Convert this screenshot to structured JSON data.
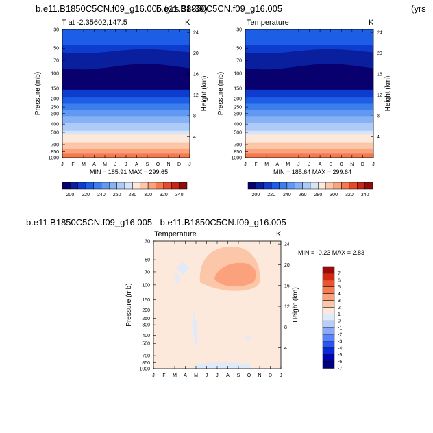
{
  "page": {
    "title_left": "b.e11.B1850C5CN.f09_g16.005 (yrs 38-39)",
    "title_right": "b.e11.B1850C5CN.f09_g16.005",
    "title_right_suffix": "(yrs",
    "diff_title": "b.e11.B1850C5CN.f09_g16.005 - b.e11.B1850C5CN.f09_g16.005"
  },
  "colors": {
    "temperature_palette": [
      "#08006e",
      "#0a1f9e",
      "#0d3ccf",
      "#1c5ee6",
      "#3d7eef",
      "#6098f2",
      "#86b1f5",
      "#aecbf7",
      "#d6e4f9",
      "#fde8dc",
      "#fcc7a9",
      "#f9a27c",
      "#f4794f",
      "#e44b2a",
      "#c72515",
      "#8e0c0c"
    ],
    "difference_palette": [
      "#000078",
      "#0000b4",
      "#0a28dc",
      "#2b54f0",
      "#5a84f7",
      "#8aaaf8",
      "#b7cdfa",
      "#dfeafb",
      "#fde8dc",
      "#fcc7a9",
      "#fba27c",
      "#f57c52",
      "#eb542c",
      "#d12a12",
      "#9e0808"
    ]
  },
  "chart_data": [
    {
      "type": "heatmap",
      "title": "T at -2.35602,147.5",
      "units_label": "K",
      "ylabel": "Pressure (mb)",
      "y2label": "Height (km)",
      "x": [
        "J",
        "F",
        "M",
        "A",
        "M",
        "J",
        "J",
        "A",
        "S",
        "O",
        "N",
        "D",
        "J"
      ],
      "pressure_ticks": [
        30,
        50,
        70,
        100,
        150,
        200,
        250,
        300,
        400,
        500,
        700,
        850,
        1000
      ],
      "height_ticks": [
        4,
        8,
        12,
        16,
        20,
        24
      ],
      "contour_levels": [
        200,
        210,
        220,
        230,
        240,
        250,
        260,
        270,
        280,
        290,
        300,
        310,
        320,
        330,
        340
      ],
      "colorbar_labels": [
        200,
        220,
        240,
        260,
        280,
        300,
        320,
        340
      ],
      "min_max_text": "MIN = 185.91 MAX = 299.65",
      "min": 185.91,
      "max": 299.65
    },
    {
      "type": "heatmap",
      "title": "Temperature",
      "units_label": "K",
      "ylabel": "Pressure (mb)",
      "y2label": "Height (km)",
      "x": [
        "J",
        "F",
        "M",
        "A",
        "M",
        "J",
        "J",
        "A",
        "S",
        "O",
        "N",
        "D",
        "J"
      ],
      "pressure_ticks": [
        30,
        50,
        70,
        100,
        150,
        200,
        250,
        300,
        400,
        500,
        700,
        850,
        1000
      ],
      "height_ticks": [
        4,
        8,
        12,
        16,
        20,
        24
      ],
      "contour_levels": [
        200,
        210,
        220,
        230,
        240,
        250,
        260,
        270,
        280,
        290,
        300,
        310,
        320,
        330,
        340
      ],
      "colorbar_labels": [
        200,
        220,
        240,
        260,
        280,
        300,
        320,
        340
      ],
      "min_max_text": "MIN = 185.64 MAX = 299.64",
      "min": 185.64,
      "max": 299.64
    },
    {
      "type": "heatmap",
      "title": "Temperature",
      "units_label": "K",
      "ylabel": "Pressure (mb)",
      "y2label": "Height (km)",
      "x": [
        "J",
        "F",
        "M",
        "A",
        "M",
        "J",
        "J",
        "A",
        "S",
        "O",
        "N",
        "D",
        "J"
      ],
      "pressure_ticks": [
        30,
        50,
        70,
        100,
        150,
        200,
        250,
        300,
        400,
        500,
        700,
        850,
        1000
      ],
      "height_ticks": [
        4,
        8,
        12,
        16,
        20,
        24
      ],
      "contour_levels": [
        -7,
        -6,
        -5,
        -4,
        -3,
        -2,
        -1,
        0,
        1,
        2,
        3,
        4,
        5,
        6,
        7
      ],
      "colorbar_labels": [
        -7,
        -6,
        -5,
        -4,
        -3,
        -2,
        -1,
        0,
        1,
        2,
        3,
        4,
        5,
        6,
        7
      ],
      "min_max_text": "MIN = -0.23 MAX = 2.83",
      "min": -0.23,
      "max": 2.83
    }
  ]
}
